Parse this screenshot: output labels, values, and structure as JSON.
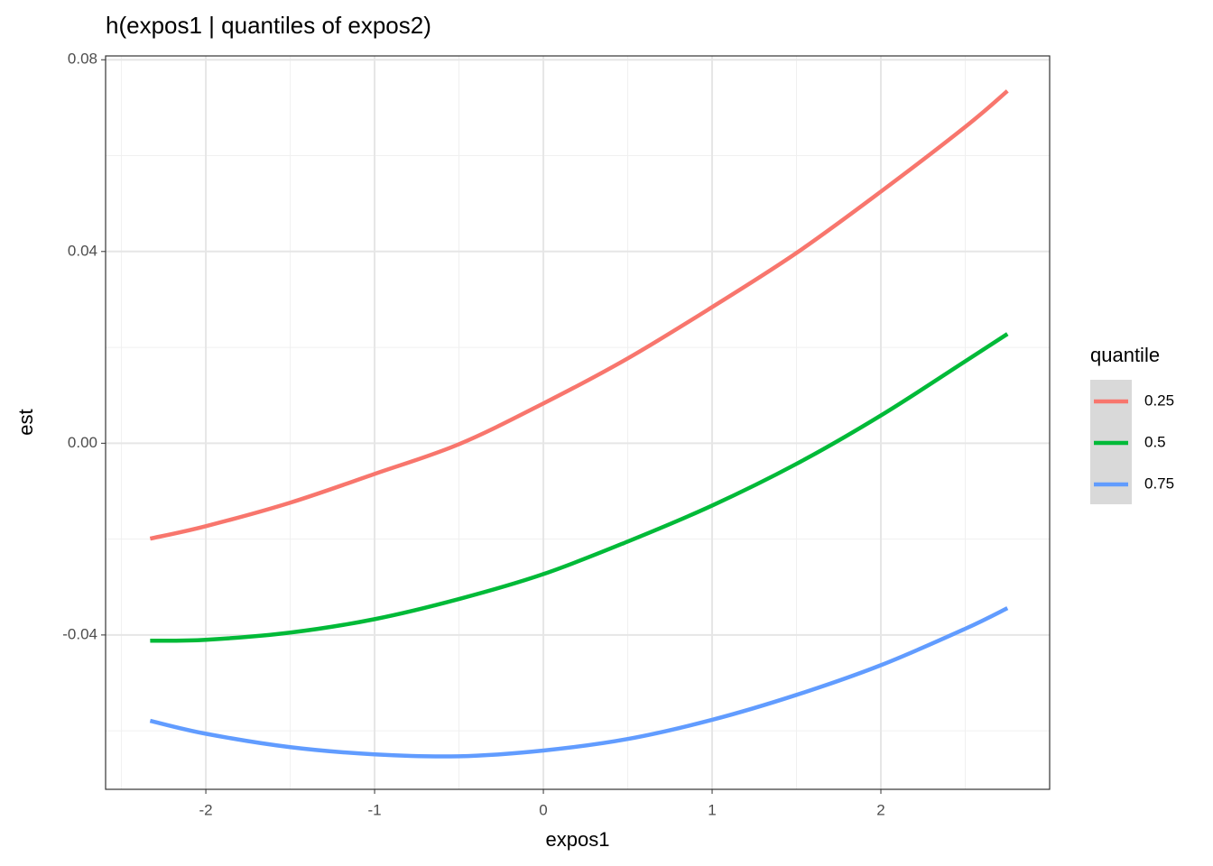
{
  "chart_data": {
    "type": "line",
    "title": "h(expos1 | quantiles of expos2)",
    "x_label": "expos1",
    "y_label": "est",
    "x": [
      -2.33,
      -2,
      -1.5,
      -1,
      -0.5,
      0,
      0.5,
      1,
      1.5,
      2,
      2.5,
      2.75
    ],
    "series": [
      {
        "name": "0.25",
        "color": "#F8766D",
        "values": [
          -0.0199,
          -0.0173,
          -0.0124,
          -0.0064,
          -0.0002,
          0.0083,
          0.0177,
          0.0284,
          0.0397,
          0.0525,
          0.066,
          0.0735
        ]
      },
      {
        "name": "0.5",
        "color": "#00BA38",
        "values": [
          -0.0412,
          -0.041,
          -0.0395,
          -0.0367,
          -0.0325,
          -0.0273,
          -0.0205,
          -0.013,
          -0.0043,
          0.0058,
          0.0171,
          0.0228
        ]
      },
      {
        "name": "0.75",
        "color": "#619CFF",
        "values": [
          -0.0579,
          -0.0606,
          -0.0634,
          -0.0649,
          -0.0653,
          -0.0641,
          -0.0617,
          -0.0577,
          -0.0525,
          -0.0463,
          -0.0387,
          -0.0344
        ]
      }
    ],
    "legend_title": "quantile",
    "legend_position": "right",
    "xlim": [
      -2.594,
      3.0
    ],
    "xticks": [
      -2,
      -1,
      0,
      1,
      2
    ],
    "ylim": [
      -0.0722,
      0.0808
    ],
    "yticks": [
      -0.04,
      {
        "value": 0,
        "label": "0.00"
      },
      0.04,
      0.08
    ],
    "grid": true,
    "minor_grid": true
  }
}
